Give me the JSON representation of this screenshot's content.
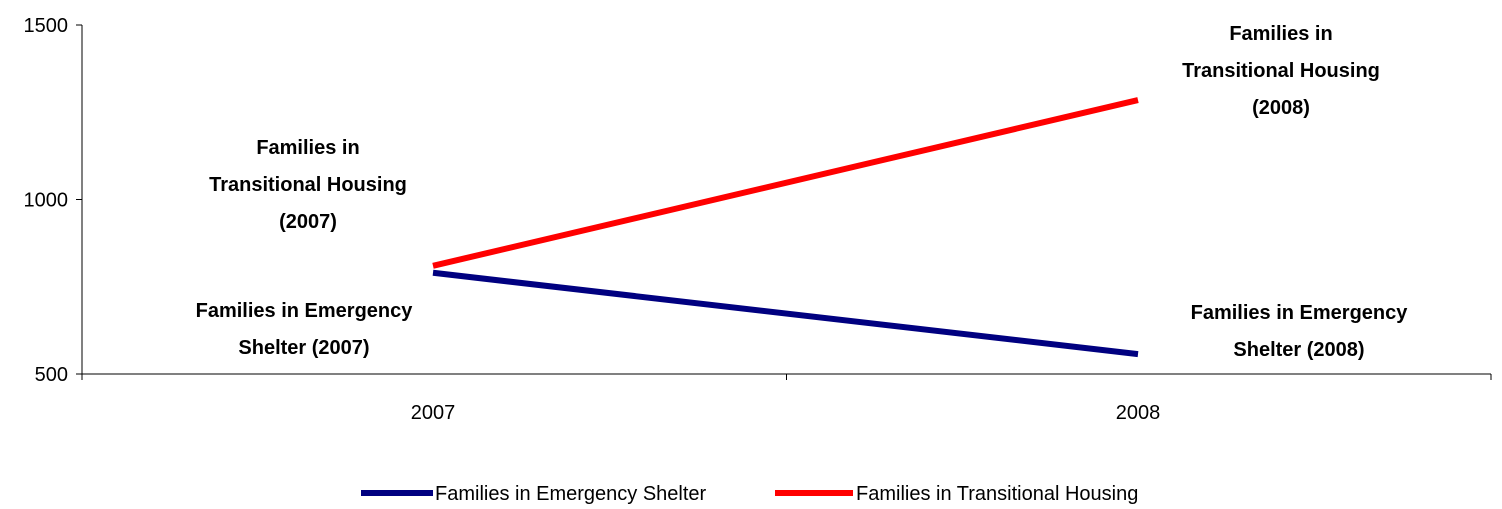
{
  "chart_data": {
    "type": "line",
    "title": "",
    "xlabel": "",
    "ylabel": "",
    "categories": [
      "2007",
      "2008"
    ],
    "ylim": [
      500,
      1500
    ],
    "y_ticks": [
      "500",
      "1000",
      "1500"
    ],
    "grid": false,
    "legend_position": "bottom",
    "series": [
      {
        "name": "Families in Emergency Shelter",
        "values": [
          790,
          557
        ],
        "color": "#000080"
      },
      {
        "name": "Families in Transitional Housing",
        "values": [
          810,
          1285
        ],
        "color": "#ff0000"
      }
    ],
    "annotations": [
      {
        "lines": [
          "Families in",
          "Transitional Housing",
          "(2007)"
        ]
      },
      {
        "lines": [
          "Families in Emergency",
          "Shelter (2007)"
        ]
      },
      {
        "lines": [
          "Families in",
          "Transitional Housing",
          "(2008)"
        ]
      },
      {
        "lines": [
          "Families in Emergency",
          "Shelter (2008)"
        ]
      }
    ]
  }
}
